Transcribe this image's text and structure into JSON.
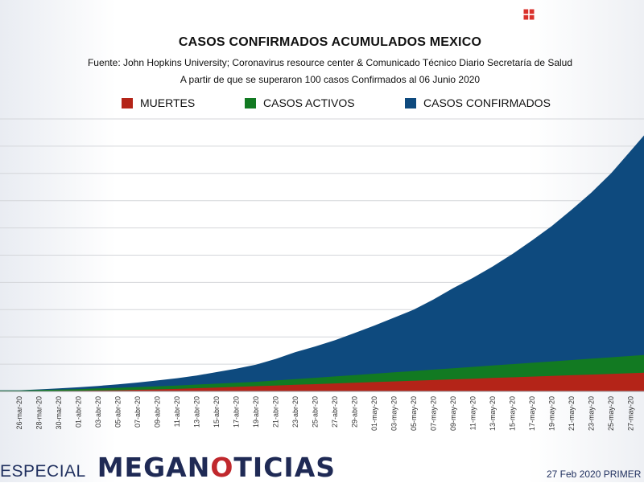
{
  "chart_data": {
    "type": "area",
    "title": "CASOS CONFIRMADOS ACUMULADOS MEXICO",
    "source": "Fuente: John Hopkins University; Coronavirus resource center & Comunicado Técnico Diario Secretaría de Salud",
    "subtitle": "A partir de que se superaron 100 casos Confirmados al 06 Junio 2020",
    "categories": [
      "26-mar-20",
      "28-mar-20",
      "30-mar-20",
      "01-abr-20",
      "03-abr-20",
      "05-abr-20",
      "07-abr-20",
      "09-abr-20",
      "11-abr-20",
      "13-abr-20",
      "15-abr-20",
      "17-abr-20",
      "19-abr-20",
      "21-abr-20",
      "23-abr-20",
      "25-abr-20",
      "27-abr-20",
      "29-abr-20",
      "01-may-20",
      "03-may-20",
      "05-may-20",
      "07-may-20",
      "09-may-20",
      "11-may-20",
      "13-may-20",
      "15-may-20",
      "17-may-20",
      "19-may-20",
      "21-may-20",
      "23-may-20",
      "25-may-20",
      "27-may-20"
    ],
    "series": [
      {
        "name": "CASOS CONFIRMADOS",
        "color": "#0e4a7e",
        "values": [
          0.5,
          0.9,
          1.3,
          1.8,
          2.4,
          3.1,
          3.9,
          4.8,
          5.8,
          7.0,
          8.5,
          10.0,
          11.8,
          14.3,
          17.3,
          19.8,
          22.5,
          25.7,
          29.0,
          32.5,
          36.0,
          40.5,
          45.5,
          50.0,
          55.0,
          60.5,
          66.5,
          72.8,
          80.0,
          87.5,
          96.0,
          106.0
        ]
      },
      {
        "name": "CASOS ACTIVOS",
        "color": "#127a22",
        "values": [
          0.4,
          0.6,
          0.8,
          1.0,
          1.3,
          1.6,
          1.9,
          2.2,
          2.6,
          3.0,
          3.4,
          3.8,
          4.2,
          4.8,
          5.4,
          6.0,
          6.6,
          7.2,
          7.8,
          8.4,
          9.0,
          9.6,
          10.2,
          10.8,
          11.4,
          12.0,
          12.6,
          13.2,
          13.8,
          14.4,
          15.0,
          15.6
        ]
      },
      {
        "name": "MUERTES",
        "color": "#b42418",
        "values": [
          0.1,
          0.1,
          0.2,
          0.3,
          0.4,
          0.5,
          0.7,
          0.9,
          1.1,
          1.4,
          1.7,
          2.0,
          2.3,
          2.6,
          2.9,
          3.2,
          3.5,
          3.8,
          4.1,
          4.4,
          4.7,
          5.0,
          5.3,
          5.6,
          5.9,
          6.2,
          6.5,
          6.8,
          7.1,
          7.4,
          7.7,
          8.0
        ]
      }
    ],
    "ylim": [
      0,
      120
    ],
    "grid": true,
    "legend_position": "top",
    "legend": [
      "MUERTES",
      "CASOS ACTIVOS",
      "CASOS CONFIRMADOS"
    ]
  },
  "footer": {
    "especial": "ESPECIAL",
    "brand_part1": "MEGAN",
    "brand_accent": "O",
    "brand_part2": "TICIAS",
    "broadcast": "27 Feb 2020 PRIMER"
  },
  "logo_icon": "red-grid-logo-icon"
}
